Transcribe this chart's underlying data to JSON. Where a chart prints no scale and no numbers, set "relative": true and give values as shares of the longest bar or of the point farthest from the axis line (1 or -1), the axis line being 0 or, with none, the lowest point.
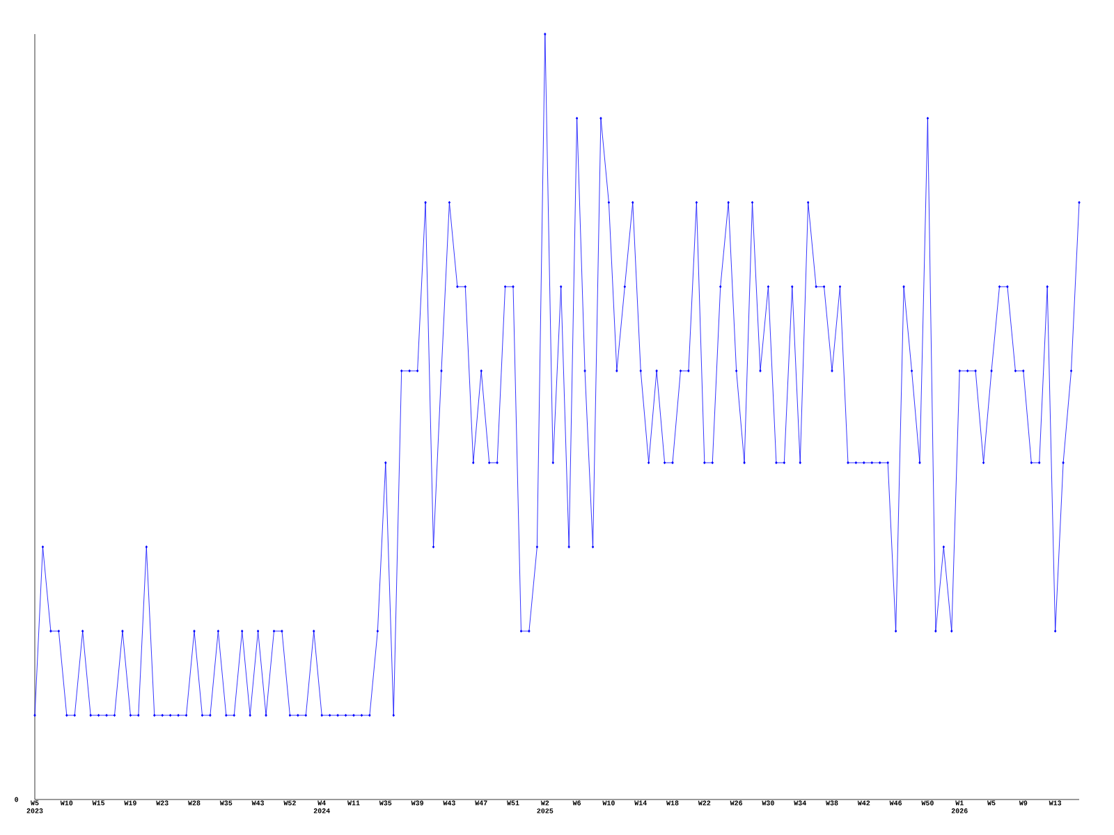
{
  "chart_data": {
    "type": "line",
    "relative": true,
    "color": "#0000ff",
    "marker": "diamond",
    "line_style": "solid",
    "categories": [
      "W5 2023",
      null,
      null,
      null,
      "W10",
      null,
      null,
      null,
      "W15",
      null,
      null,
      null,
      "W19",
      null,
      null,
      null,
      "W23",
      null,
      null,
      null,
      "W28",
      null,
      null,
      null,
      "W35",
      null,
      null,
      null,
      "W43",
      null,
      null,
      null,
      "W52",
      null,
      null,
      null,
      "W4 2024",
      null,
      null,
      null,
      "W11",
      null,
      null,
      null,
      "W35",
      null,
      null,
      null,
      "W39",
      null,
      null,
      null,
      "W43",
      null,
      null,
      null,
      "W47",
      null,
      null,
      null,
      "W51",
      null,
      null,
      null,
      "W2 2025",
      null,
      null,
      null,
      "W6",
      null,
      null,
      null,
      "W10",
      null,
      null,
      null,
      "W14",
      null,
      null,
      null,
      "W18",
      null,
      null,
      null,
      "W22",
      null,
      null,
      null,
      "W26",
      null,
      null,
      null,
      "W30",
      null,
      null,
      null,
      "W34",
      null,
      null,
      null,
      "W38",
      null,
      null,
      null,
      "W42",
      null,
      null,
      null,
      "W46",
      null,
      null,
      null,
      "W50",
      null,
      null,
      null,
      "W1 2026",
      null,
      null,
      null,
      "W5",
      null,
      null,
      null,
      "W9",
      null,
      null,
      null,
      "W13",
      null,
      null,
      null
    ],
    "values": [
      0.11,
      0.33,
      0.22,
      0.22,
      0.11,
      0.11,
      0.22,
      0.11,
      0.11,
      0.11,
      0.11,
      0.22,
      0.11,
      0.11,
      0.33,
      0.11,
      0.11,
      0.11,
      0.11,
      0.11,
      0.22,
      0.11,
      0.11,
      0.22,
      0.11,
      0.11,
      0.22,
      0.11,
      0.22,
      0.11,
      0.22,
      0.22,
      0.11,
      0.11,
      0.11,
      0.22,
      0.11,
      0.11,
      0.11,
      0.11,
      0.11,
      0.11,
      0.11,
      0.22,
      0.44,
      0.11,
      0.56,
      0.56,
      0.56,
      0.78,
      0.33,
      0.56,
      0.78,
      0.67,
      0.67,
      0.44,
      0.56,
      0.44,
      0.44,
      0.67,
      0.67,
      0.22,
      0.22,
      0.33,
      1,
      0.44,
      0.67,
      0.33,
      0.89,
      0.56,
      0.33,
      0.89,
      0.78,
      0.56,
      0.67,
      0.78,
      0.56,
      0.44,
      0.56,
      0.44,
      0.44,
      0.56,
      0.56,
      0.78,
      0.44,
      0.44,
      0.67,
      0.78,
      0.56,
      0.44,
      0.78,
      0.56,
      0.67,
      0.44,
      0.44,
      0.67,
      0.44,
      0.78,
      0.67,
      0.67,
      0.56,
      0.67,
      0.44,
      0.44,
      0.44,
      0.44,
      0.44,
      0.44,
      0.22,
      0.67,
      0.56,
      0.44,
      0.89,
      0.22,
      0.33,
      0.22,
      0.56,
      0.56,
      0.56,
      0.44,
      0.56,
      0.67,
      0.67,
      0.56,
      0.56,
      0.44,
      0.44,
      0.67,
      0.22,
      0.44,
      0.56,
      0.78
    ],
    "annotations": [
      "0"
    ]
  }
}
